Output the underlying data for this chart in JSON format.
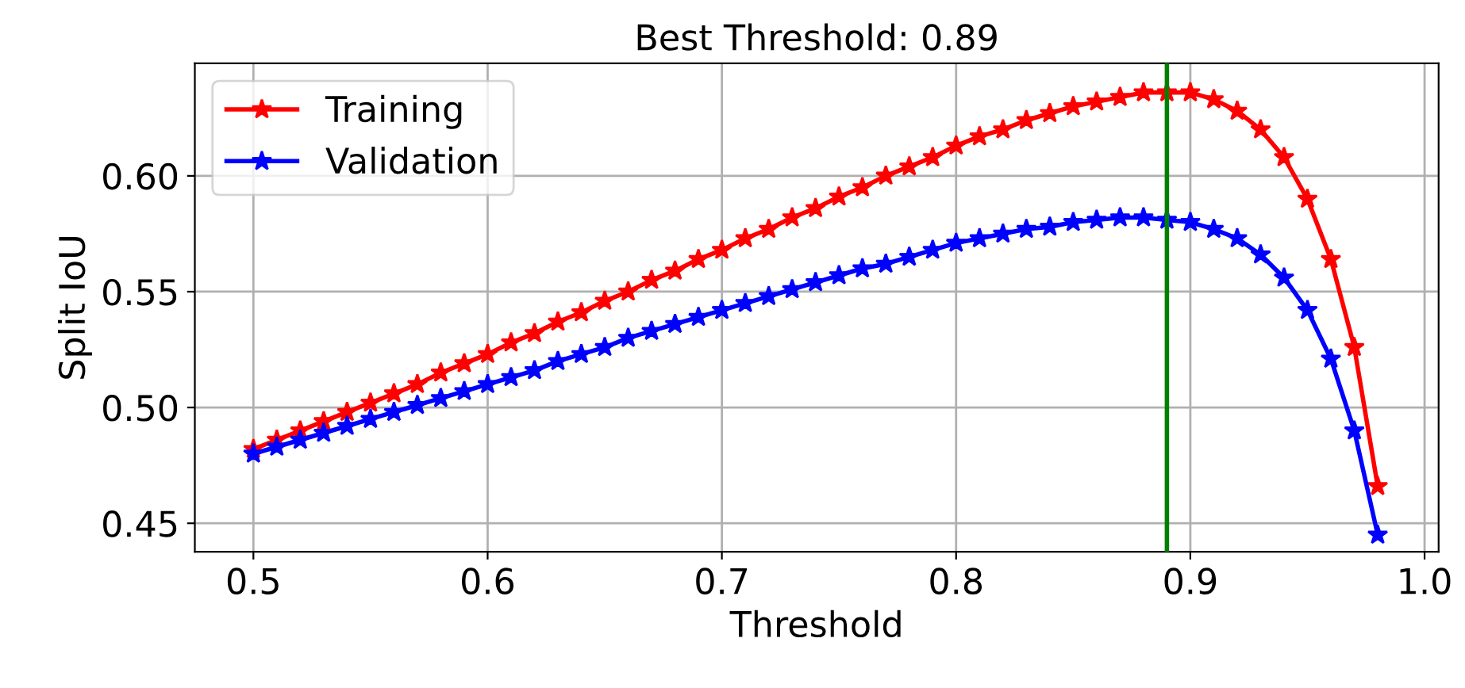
{
  "chart_data": {
    "type": "line",
    "title": "Best Threshold: 0.89",
    "xlabel": "Threshold",
    "ylabel": "Split IoU",
    "x": [
      0.5,
      0.51,
      0.52,
      0.53,
      0.54,
      0.55,
      0.56,
      0.57,
      0.58,
      0.59,
      0.6,
      0.61,
      0.62,
      0.63,
      0.64,
      0.65,
      0.66,
      0.67,
      0.68,
      0.69,
      0.7,
      0.71,
      0.72,
      0.73,
      0.74,
      0.75,
      0.76,
      0.77,
      0.78,
      0.79,
      0.8,
      0.81,
      0.82,
      0.83,
      0.84,
      0.85,
      0.86,
      0.87,
      0.88,
      0.89,
      0.9,
      0.91,
      0.92,
      0.93,
      0.94,
      0.95,
      0.96,
      0.97,
      0.98
    ],
    "series": [
      {
        "name": "Training",
        "color": "#ff0000",
        "values": [
          0.482,
          0.486,
          0.49,
          0.494,
          0.498,
          0.502,
          0.506,
          0.51,
          0.515,
          0.519,
          0.523,
          0.528,
          0.532,
          0.537,
          0.541,
          0.546,
          0.55,
          0.555,
          0.559,
          0.564,
          0.568,
          0.573,
          0.577,
          0.582,
          0.586,
          0.591,
          0.595,
          0.6,
          0.604,
          0.608,
          0.613,
          0.617,
          0.62,
          0.624,
          0.627,
          0.63,
          0.632,
          0.634,
          0.636,
          0.636,
          0.636,
          0.633,
          0.628,
          0.62,
          0.608,
          0.59,
          0.564,
          0.526,
          0.466
        ]
      },
      {
        "name": "Validation",
        "color": "#0000ff",
        "values": [
          0.48,
          0.483,
          0.486,
          0.489,
          0.492,
          0.495,
          0.498,
          0.501,
          0.504,
          0.507,
          0.51,
          0.513,
          0.516,
          0.52,
          0.523,
          0.526,
          0.53,
          0.533,
          0.536,
          0.539,
          0.542,
          0.545,
          0.548,
          0.551,
          0.554,
          0.557,
          0.56,
          0.562,
          0.565,
          0.568,
          0.571,
          0.573,
          0.575,
          0.577,
          0.578,
          0.58,
          0.581,
          0.582,
          0.582,
          0.581,
          0.58,
          0.577,
          0.573,
          0.566,
          0.556,
          0.542,
          0.521,
          0.49,
          0.445
        ]
      }
    ],
    "xlim": [
      0.475,
      1.006
    ],
    "ylim": [
      0.4377,
      0.6486
    ],
    "xticks": [
      0.5,
      0.6,
      0.7,
      0.8,
      0.9,
      {
        "value": 1.0,
        "label": "1.0"
      }
    ],
    "yticks": [
      {
        "value": 0.45,
        "label": "0.45"
      },
      {
        "value": 0.5,
        "label": "0.50"
      },
      {
        "value": 0.55,
        "label": "0.55"
      },
      {
        "value": 0.6,
        "label": "0.60"
      }
    ],
    "ref_lines": [
      {
        "axis": "x",
        "value": 0.89,
        "color": "#008000"
      }
    ],
    "grid": true,
    "legend": "top left",
    "marker": "star",
    "line_style": "solid"
  }
}
